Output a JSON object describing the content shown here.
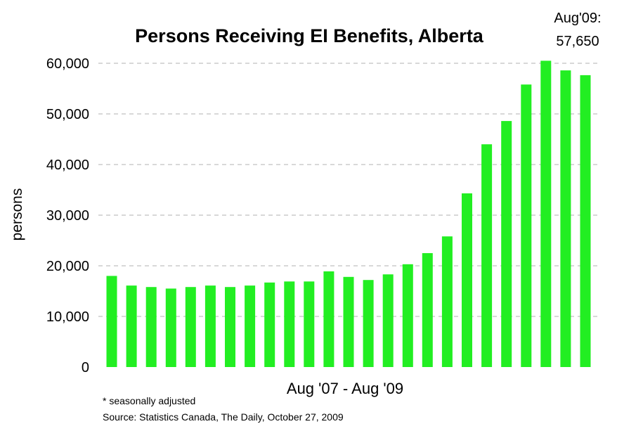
{
  "chart_data": {
    "type": "bar",
    "title": "Persons Receiving EI Benefits, Alberta",
    "xlabel": "Aug '07 - Aug '09",
    "ylabel": "persons",
    "ylim": [
      0,
      60000
    ],
    "yticks": [
      0,
      10000,
      20000,
      30000,
      40000,
      50000,
      60000
    ],
    "ytick_labels": [
      "0",
      "10,000",
      "20,000",
      "30,000",
      "40,000",
      "50,000",
      "60,000"
    ],
    "grid": true,
    "bar_color": "#22ee22",
    "values": [
      18000,
      16100,
      15800,
      15500,
      15800,
      16100,
      15800,
      16100,
      16700,
      16900,
      16900,
      18900,
      17800,
      17200,
      18300,
      20300,
      22500,
      25800,
      34300,
      44000,
      48600,
      55800,
      60500,
      58600,
      57650
    ],
    "annotation": {
      "line1": "Aug'09:",
      "line2": "57,650"
    }
  },
  "footnotes": {
    "seasonal": "* seasonally adjusted",
    "source": "Source: Statistics Canada, The Daily, October 27, 2009"
  }
}
